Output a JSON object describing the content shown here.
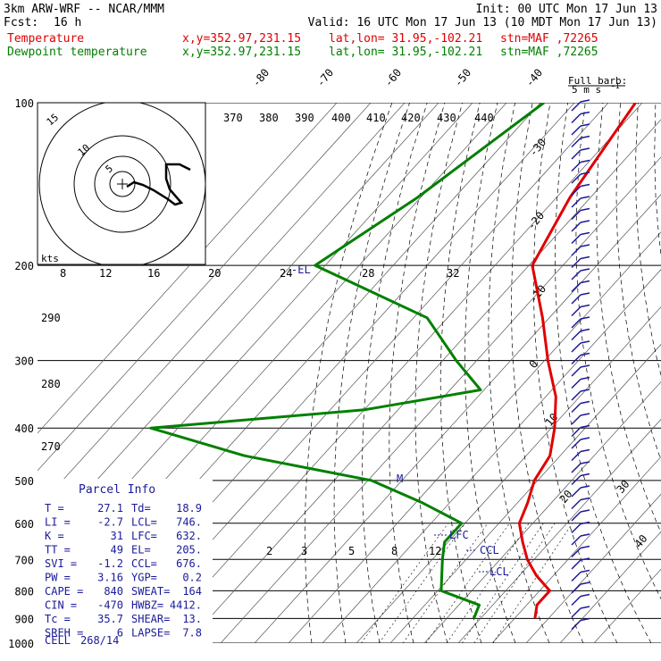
{
  "header": {
    "model": "3km ARW-WRF -- NCAR/MMM",
    "init": "Init: 00 UTC Mon 17 Jun 13",
    "fcst_label": "Fcst:",
    "fcst_value": "16 h",
    "valid": "Valid: 16 UTC Mon 17 Jun 13 (10 MDT Mon 17 Jun 13)",
    "temp_label": "Temperature",
    "dew_label": "Dewpoint temperature",
    "location_xy": "x,y=352.97,231.15",
    "location_latlon": "lat,lon= 31.95,-102.21",
    "station": "stn=MAF ,72265"
  },
  "colors": {
    "temperature": "#e00000",
    "dewpoint": "#008000",
    "parcel_info": "#1a1a99",
    "hodograph": "#000000",
    "barbs": "#1a1a99"
  },
  "barb_key": {
    "line1": "Full barb:",
    "line2": "5 m s",
    "superscript": "-1"
  },
  "hodograph": {
    "ring_labels": [
      "5",
      "10",
      "15"
    ],
    "kts_label": "kts"
  },
  "labels": {
    "el": "-EL",
    "lfc": "LFC",
    "ccl": "CCL",
    "lcl": "LCL",
    "m": "M"
  },
  "chart_data": {
    "type": "line",
    "title": "",
    "y_axis": {
      "quantity": "pressure",
      "scale": "log",
      "ticks": [
        100,
        200,
        300,
        400,
        500,
        600,
        700,
        800,
        900,
        1000
      ]
    },
    "isotherm_labels": [
      "-80",
      "-70",
      "-60",
      "-50",
      "-40",
      "-30",
      "-20",
      "-10",
      "0",
      "10",
      "20",
      "30",
      "40"
    ],
    "theta_e_labels": [
      "370",
      "380",
      "390",
      "400",
      "410",
      "420",
      "430",
      "440"
    ],
    "theta_labels": [
      "290",
      "280",
      "270"
    ],
    "mixing_ratio_labels": [
      "8",
      "12",
      "16",
      "20",
      "24",
      "28",
      "32"
    ],
    "mixing_ratio_labels_low": [
      "2",
      "3",
      "5",
      "8",
      "12"
    ],
    "grid": true,
    "series": [
      {
        "name": "Temperature",
        "points": [
          [
            100,
            -72
          ],
          [
            150,
            -66
          ],
          [
            200,
            -59
          ],
          [
            250,
            -42
          ],
          [
            300,
            -29
          ],
          [
            350,
            -17
          ],
          [
            400,
            -9
          ],
          [
            450,
            -3
          ],
          [
            500,
            -1
          ],
          [
            550,
            3
          ],
          [
            600,
            6
          ],
          [
            650,
            12
          ],
          [
            700,
            18
          ],
          [
            750,
            25
          ],
          [
            800,
            33
          ],
          [
            850,
            33
          ],
          [
            900,
            36
          ]
        ]
      },
      {
        "name": "Dewpoint temperature",
        "points": [
          [
            100,
            -99
          ],
          [
            150,
            -111
          ],
          [
            200,
            -123
          ],
          [
            250,
            -76
          ],
          [
            300,
            -56
          ],
          [
            340,
            -41
          ],
          [
            370,
            -70
          ],
          [
            400,
            -128
          ],
          [
            450,
            -93
          ],
          [
            500,
            -49
          ],
          [
            550,
            -28
          ],
          [
            600,
            -11
          ],
          [
            650,
            -11
          ],
          [
            700,
            -7
          ],
          [
            800,
            1
          ],
          [
            850,
            16
          ],
          [
            900,
            18
          ]
        ]
      }
    ]
  },
  "parcel_info": {
    "title": "Parcel Info",
    "rows": [
      {
        "k1": "T",
        "v1": "27.1",
        "k2": "Td",
        "v2": "18.9"
      },
      {
        "k1": "LI",
        "v1": "-2.7",
        "k2": "LCL",
        "v2": "746."
      },
      {
        "k1": "K",
        "v1": "31",
        "k2": "LFC",
        "v2": "632."
      },
      {
        "k1": "TT",
        "v1": "49",
        "k2": "EL",
        "v2": "205."
      },
      {
        "k1": "SVI",
        "v1": "-1.2",
        "k2": "CCL",
        "v2": "676."
      },
      {
        "k1": "PW",
        "v1": "3.16",
        "k2": "YGP",
        "v2": "0.2"
      },
      {
        "k1": "CAPE",
        "v1": "840",
        "k2": "SWEAT",
        "v2": "164"
      },
      {
        "k1": "CIN",
        "v1": "-470",
        "k2": "HWBZ",
        "v2": "4412."
      },
      {
        "k1": "Tc",
        "v1": "35.7",
        "k2": "SHEAR",
        "v2": "13."
      },
      {
        "k1": "SREH",
        "v1": "6",
        "k2": "LAPSE",
        "v2": "7.8"
      }
    ],
    "cell_label": "CELL",
    "cell_value": "268/14"
  }
}
